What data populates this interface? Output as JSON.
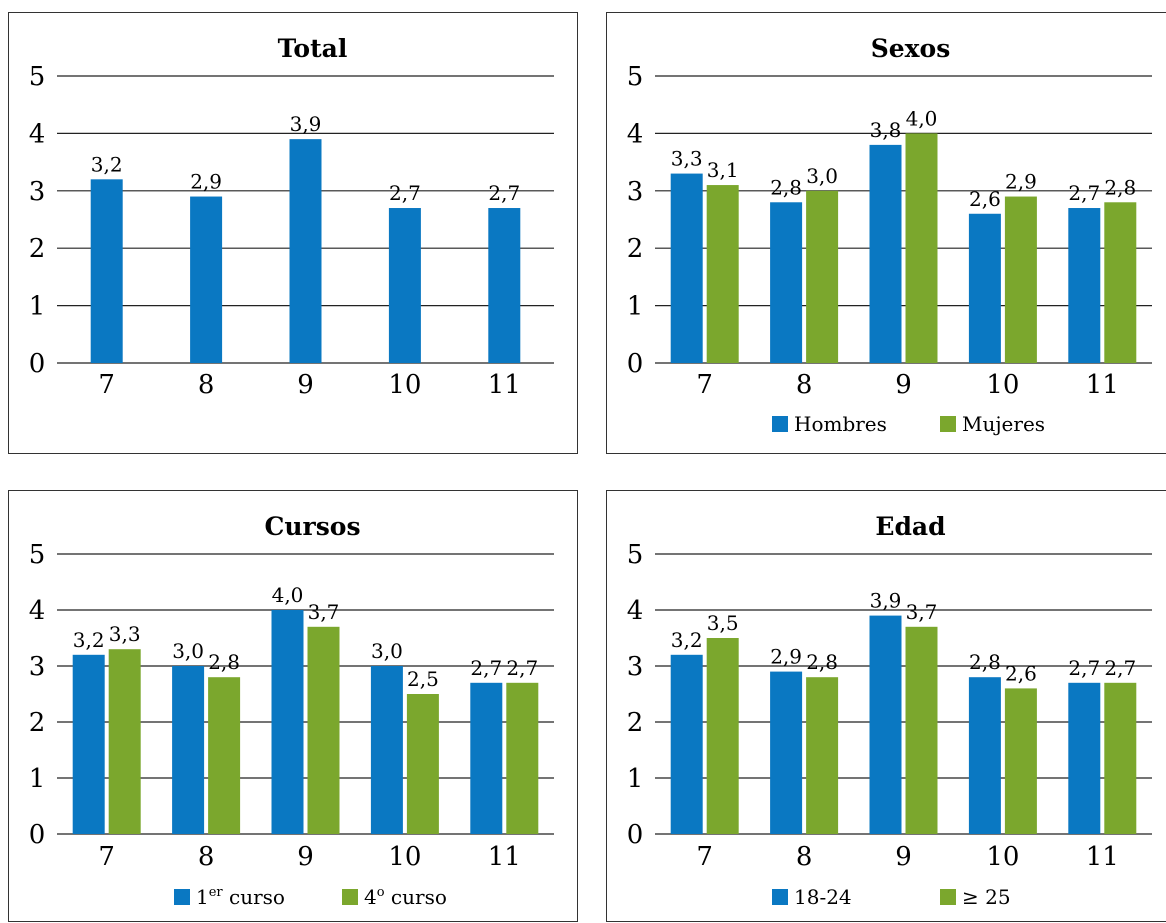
{
  "colors": {
    "blue": "#0A78C2",
    "green": "#7BA72D"
  },
  "chart_data": [
    {
      "type": "bar",
      "title": "Total",
      "categories": [
        "7",
        "8",
        "9",
        "10",
        "11"
      ],
      "ylim": [
        0,
        5
      ],
      "yticks": [
        "0",
        "1",
        "2",
        "3",
        "4",
        "5"
      ],
      "grid": true,
      "series": [
        {
          "values": [
            3.2,
            2.9,
            3.9,
            2.7,
            2.7
          ],
          "labels": [
            "3,2",
            "2,9",
            "3,9",
            "2,7",
            "2,7"
          ]
        }
      ]
    },
    {
      "type": "bar",
      "title": "Sexos",
      "categories": [
        "7",
        "8",
        "9",
        "10",
        "11"
      ],
      "ylim": [
        0,
        5
      ],
      "yticks": [
        "0",
        "1",
        "2",
        "3",
        "4",
        "5"
      ],
      "grid": true,
      "legend": "bottom",
      "series": [
        {
          "name": "Hombres",
          "values": [
            3.3,
            2.8,
            3.8,
            2.6,
            2.7
          ],
          "labels": [
            "3,3",
            "2,8",
            "3,8",
            "2,6",
            "2,7"
          ]
        },
        {
          "name": "Mujeres",
          "values": [
            3.1,
            3.0,
            4.0,
            2.9,
            2.8
          ],
          "labels": [
            "3,1",
            "3,0",
            "4,0",
            "2,9",
            "2,8"
          ]
        }
      ]
    },
    {
      "type": "bar",
      "title": "Cursos",
      "categories": [
        "7",
        "8",
        "9",
        "10",
        "11"
      ],
      "ylim": [
        0,
        5
      ],
      "yticks": [
        "0",
        "1",
        "2",
        "3",
        "4",
        "5"
      ],
      "grid": true,
      "legend": "bottom",
      "series": [
        {
          "name": "1er curso",
          "name_base": "1",
          "name_sup": "er",
          "name_rest": " curso",
          "values": [
            3.2,
            3.0,
            4.0,
            3.0,
            2.7
          ],
          "labels": [
            "3,2",
            "3,0",
            "4,0",
            "3,0",
            "2,7"
          ]
        },
        {
          "name": "4o curso",
          "name_base": "4",
          "name_sup": "o",
          "name_rest": " curso",
          "values": [
            3.3,
            2.8,
            3.7,
            2.5,
            2.7
          ],
          "labels": [
            "3,3",
            "2,8",
            "3,7",
            "2,5",
            "2,7"
          ]
        }
      ]
    },
    {
      "type": "bar",
      "title": "Edad",
      "categories": [
        "7",
        "8",
        "9",
        "10",
        "11"
      ],
      "ylim": [
        0,
        5
      ],
      "yticks": [
        "0",
        "1",
        "2",
        "3",
        "4",
        "5"
      ],
      "grid": true,
      "legend": "bottom",
      "series": [
        {
          "name": "18-24",
          "values": [
            3.2,
            2.9,
            3.9,
            2.8,
            2.7
          ],
          "labels": [
            "3,2",
            "2,9",
            "3,9",
            "2,8",
            "2,7"
          ]
        },
        {
          "name": "≥ 25",
          "values": [
            3.5,
            2.8,
            3.7,
            2.6,
            2.7
          ],
          "labels": [
            "3,5",
            "2,8",
            "3,7",
            "2,6",
            "2,7"
          ]
        }
      ]
    }
  ]
}
